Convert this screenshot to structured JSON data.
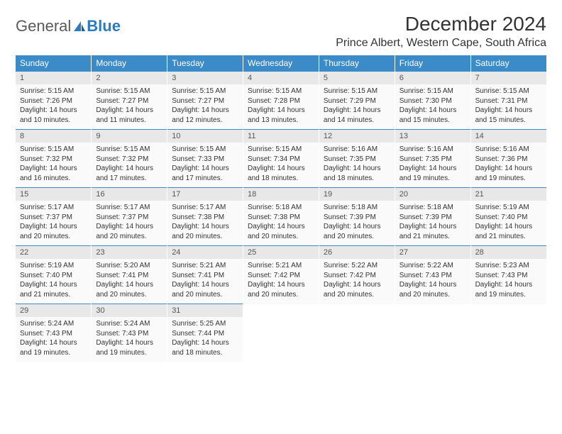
{
  "logo": {
    "text1": "General",
    "text2": "Blue"
  },
  "title": "December 2024",
  "location": "Prince Albert, Western Cape, South Africa",
  "colors": {
    "header_bg": "#3b8bc8",
    "header_text": "#ffffff",
    "daynum_bg": "#e8e8e8",
    "cell_bg": "#fafafa",
    "border_blue": "#3b8bc8"
  },
  "day_headers": [
    "Sunday",
    "Monday",
    "Tuesday",
    "Wednesday",
    "Thursday",
    "Friday",
    "Saturday"
  ],
  "weeks": [
    [
      {
        "n": "1",
        "sr": "5:15 AM",
        "ss": "7:26 PM",
        "dl": "14 hours and 10 minutes."
      },
      {
        "n": "2",
        "sr": "5:15 AM",
        "ss": "7:27 PM",
        "dl": "14 hours and 11 minutes."
      },
      {
        "n": "3",
        "sr": "5:15 AM",
        "ss": "7:27 PM",
        "dl": "14 hours and 12 minutes."
      },
      {
        "n": "4",
        "sr": "5:15 AM",
        "ss": "7:28 PM",
        "dl": "14 hours and 13 minutes."
      },
      {
        "n": "5",
        "sr": "5:15 AM",
        "ss": "7:29 PM",
        "dl": "14 hours and 14 minutes."
      },
      {
        "n": "6",
        "sr": "5:15 AM",
        "ss": "7:30 PM",
        "dl": "14 hours and 15 minutes."
      },
      {
        "n": "7",
        "sr": "5:15 AM",
        "ss": "7:31 PM",
        "dl": "14 hours and 15 minutes."
      }
    ],
    [
      {
        "n": "8",
        "sr": "5:15 AM",
        "ss": "7:32 PM",
        "dl": "14 hours and 16 minutes."
      },
      {
        "n": "9",
        "sr": "5:15 AM",
        "ss": "7:32 PM",
        "dl": "14 hours and 17 minutes."
      },
      {
        "n": "10",
        "sr": "5:15 AM",
        "ss": "7:33 PM",
        "dl": "14 hours and 17 minutes."
      },
      {
        "n": "11",
        "sr": "5:15 AM",
        "ss": "7:34 PM",
        "dl": "14 hours and 18 minutes."
      },
      {
        "n": "12",
        "sr": "5:16 AM",
        "ss": "7:35 PM",
        "dl": "14 hours and 18 minutes."
      },
      {
        "n": "13",
        "sr": "5:16 AM",
        "ss": "7:35 PM",
        "dl": "14 hours and 19 minutes."
      },
      {
        "n": "14",
        "sr": "5:16 AM",
        "ss": "7:36 PM",
        "dl": "14 hours and 19 minutes."
      }
    ],
    [
      {
        "n": "15",
        "sr": "5:17 AM",
        "ss": "7:37 PM",
        "dl": "14 hours and 20 minutes."
      },
      {
        "n": "16",
        "sr": "5:17 AM",
        "ss": "7:37 PM",
        "dl": "14 hours and 20 minutes."
      },
      {
        "n": "17",
        "sr": "5:17 AM",
        "ss": "7:38 PM",
        "dl": "14 hours and 20 minutes."
      },
      {
        "n": "18",
        "sr": "5:18 AM",
        "ss": "7:38 PM",
        "dl": "14 hours and 20 minutes."
      },
      {
        "n": "19",
        "sr": "5:18 AM",
        "ss": "7:39 PM",
        "dl": "14 hours and 20 minutes."
      },
      {
        "n": "20",
        "sr": "5:18 AM",
        "ss": "7:39 PM",
        "dl": "14 hours and 21 minutes."
      },
      {
        "n": "21",
        "sr": "5:19 AM",
        "ss": "7:40 PM",
        "dl": "14 hours and 21 minutes."
      }
    ],
    [
      {
        "n": "22",
        "sr": "5:19 AM",
        "ss": "7:40 PM",
        "dl": "14 hours and 21 minutes."
      },
      {
        "n": "23",
        "sr": "5:20 AM",
        "ss": "7:41 PM",
        "dl": "14 hours and 20 minutes."
      },
      {
        "n": "24",
        "sr": "5:21 AM",
        "ss": "7:41 PM",
        "dl": "14 hours and 20 minutes."
      },
      {
        "n": "25",
        "sr": "5:21 AM",
        "ss": "7:42 PM",
        "dl": "14 hours and 20 minutes."
      },
      {
        "n": "26",
        "sr": "5:22 AM",
        "ss": "7:42 PM",
        "dl": "14 hours and 20 minutes."
      },
      {
        "n": "27",
        "sr": "5:22 AM",
        "ss": "7:43 PM",
        "dl": "14 hours and 20 minutes."
      },
      {
        "n": "28",
        "sr": "5:23 AM",
        "ss": "7:43 PM",
        "dl": "14 hours and 19 minutes."
      }
    ],
    [
      {
        "n": "29",
        "sr": "5:24 AM",
        "ss": "7:43 PM",
        "dl": "14 hours and 19 minutes."
      },
      {
        "n": "30",
        "sr": "5:24 AM",
        "ss": "7:43 PM",
        "dl": "14 hours and 19 minutes."
      },
      {
        "n": "31",
        "sr": "5:25 AM",
        "ss": "7:44 PM",
        "dl": "14 hours and 18 minutes."
      },
      null,
      null,
      null,
      null
    ]
  ],
  "labels": {
    "sunrise": "Sunrise:",
    "sunset": "Sunset:",
    "daylight": "Daylight:"
  }
}
